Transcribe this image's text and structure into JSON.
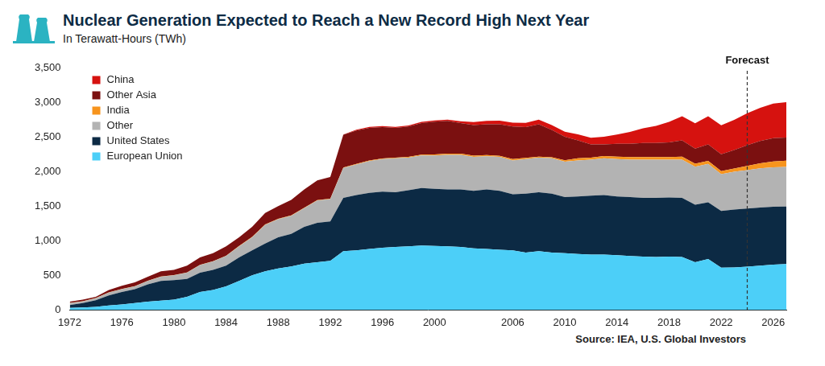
{
  "chart_data": {
    "type": "area",
    "title": "Nuclear Generation Expected to Reach a New Record High Next Year",
    "subtitle": "In Terawatt-Hours (TWh)",
    "source": "Source: IEA, U.S. Global Investors",
    "x": [
      1972,
      1973,
      1974,
      1975,
      1976,
      1977,
      1978,
      1979,
      1980,
      1981,
      1982,
      1983,
      1984,
      1985,
      1986,
      1987,
      1988,
      1989,
      1990,
      1991,
      1992,
      1993,
      1994,
      1995,
      1996,
      1997,
      1998,
      1999,
      2000,
      2001,
      2002,
      2003,
      2004,
      2005,
      2006,
      2007,
      2008,
      2009,
      2010,
      2011,
      2012,
      2013,
      2014,
      2015,
      2016,
      2017,
      2018,
      2019,
      2020,
      2021,
      2022,
      2023,
      2024,
      2025,
      2026,
      2027
    ],
    "xlim": [
      1972,
      2027
    ],
    "xticks": [
      1972,
      1976,
      1980,
      1984,
      1988,
      1992,
      1996,
      2000,
      2006,
      2010,
      2014,
      2018,
      2022,
      2026
    ],
    "ylim": [
      0,
      3500
    ],
    "yticks": [
      0,
      500,
      {
        "value": 1000,
        "label": "1,000"
      },
      {
        "value": 1500,
        "label": "1,500"
      },
      {
        "value": 2000,
        "label": "2,000"
      },
      {
        "value": 2500,
        "label": "2,500"
      },
      {
        "value": 3000,
        "label": "3,000"
      },
      {
        "value": 3500,
        "label": "3,500"
      }
    ],
    "stacked": true,
    "grid": false,
    "legend": "top-left",
    "annotations": [
      {
        "text": "Forecast",
        "x": 2024
      }
    ],
    "series": [
      {
        "name": "China",
        "color": "#d6120f",
        "values": [
          0,
          0,
          0,
          0,
          0,
          0,
          0,
          0,
          0,
          0,
          0,
          0,
          0,
          0,
          0,
          0,
          0,
          0,
          0,
          0,
          0,
          3,
          13,
          13,
          14,
          15,
          14,
          15,
          17,
          17,
          25,
          43,
          50,
          53,
          55,
          62,
          68,
          70,
          74,
          86,
          97,
          112,
          133,
          171,
          213,
          248,
          295,
          348,
          366,
          408,
          418,
          435,
          460,
          480,
          500,
          510
        ]
      },
      {
        "name": "Other Asia",
        "color": "#7b1010",
        "values": [
          18,
          22,
          17,
          37,
          47,
          57,
          57,
          77,
          77,
          97,
          107,
          117,
          136,
          125,
          145,
          165,
          184,
          225,
          264,
          284,
          313,
          472,
          481,
          472,
          451,
          430,
          439,
          458,
          475,
          472,
          442,
          443,
          444,
          454,
          472,
          444,
          465,
          394,
          337,
          260,
          190,
          168,
          185,
          193,
          203,
          203,
          212,
          235,
          217,
          237,
          245,
          267,
          300,
          323,
          335,
          335
        ]
      },
      {
        "name": "India",
        "color": "#f7941d",
        "values": [
          2,
          3,
          3,
          3,
          3,
          3,
          3,
          3,
          3,
          3,
          3,
          3,
          4,
          5,
          5,
          5,
          6,
          5,
          6,
          6,
          7,
          8,
          9,
          8,
          9,
          10,
          11,
          12,
          15,
          18,
          18,
          17,
          16,
          16,
          18,
          16,
          15,
          16,
          23,
          30,
          30,
          32,
          35,
          37,
          37,
          37,
          38,
          45,
          43,
          43,
          45,
          48,
          60,
          72,
          85,
          90
        ]
      },
      {
        "name": "Other",
        "color": "#b3b3b3",
        "values": [
          30,
          25,
          30,
          40,
          40,
          40,
          50,
          60,
          70,
          90,
          110,
          120,
          140,
          160,
          190,
          270,
          260,
          260,
          270,
          320,
          320,
          430,
          440,
          460,
          470,
          490,
          470,
          470,
          480,
          500,
          500,
          490,
          480,
          490,
          490,
          500,
          500,
          510,
          510,
          520,
          520,
          530,
          540,
          540,
          550,
          550,
          545,
          550,
          550,
          555,
          530,
          545,
          555,
          565,
          570,
          570
        ]
      },
      {
        "name": "United States",
        "color": "#0c2a44",
        "values": [
          40,
          62,
          95,
          145,
          180,
          200,
          250,
          285,
          280,
          260,
          280,
          290,
          300,
          340,
          360,
          400,
          450,
          470,
          530,
          570,
          570,
          770,
          800,
          810,
          810,
          790,
          810,
          830,
          825,
          820,
          830,
          830,
          860,
          850,
          810,
          850,
          850,
          850,
          810,
          830,
          850,
          860,
          850,
          850,
          850,
          855,
          855,
          855,
          830,
          820,
          820,
          835,
          840,
          840,
          835,
          830
        ]
      },
      {
        "name": "European Union",
        "color": "#4ccff8",
        "values": [
          30,
          38,
          45,
          65,
          80,
          100,
          120,
          135,
          150,
          190,
          260,
          290,
          340,
          420,
          500,
          560,
          600,
          630,
          670,
          690,
          710,
          850,
          860,
          880,
          900,
          910,
          920,
          930,
          925,
          920,
          910,
          890,
          880,
          870,
          860,
          830,
          850,
          830,
          820,
          810,
          800,
          800,
          790,
          780,
          770,
          765,
          770,
          765,
          690,
          735,
          610,
          615,
          625,
          640,
          655,
          665
        ]
      }
    ]
  }
}
